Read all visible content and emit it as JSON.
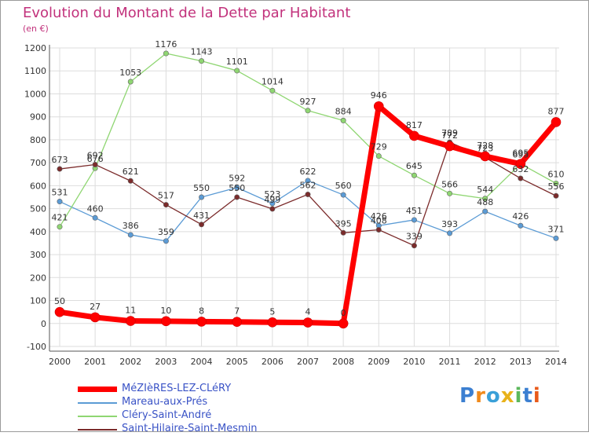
{
  "chart_data": {
    "type": "line",
    "title": "Evolution du Montant de la Dette par Habitant",
    "ylabel": "(en €)",
    "xlabel": "",
    "categories": [
      "2000",
      "2001",
      "2002",
      "2003",
      "2004",
      "2005",
      "2006",
      "2007",
      "2008",
      "2009",
      "2010",
      "2011",
      "2012",
      "2013",
      "2014"
    ],
    "ylim": [
      -100,
      1200
    ],
    "yticks": [
      -100,
      0,
      100,
      200,
      300,
      400,
      500,
      600,
      700,
      800,
      900,
      1000,
      1100,
      1200
    ],
    "grid": true,
    "legend_position": "bottom-left",
    "series": [
      {
        "name": "MéZIèRES-LEZ-CLéRY",
        "color": "#ff0000",
        "emphasis": true,
        "values": [
          50,
          27,
          11,
          10,
          8,
          7,
          5,
          4,
          0,
          946,
          817,
          772,
          728,
          695,
          877
        ]
      },
      {
        "name": "Mareau-aux-Prés",
        "color": "#5b9bd5",
        "values": [
          531,
          460,
          386,
          359,
          550,
          592,
          523,
          622,
          560,
          426,
          451,
          393,
          488,
          426,
          371
        ]
      },
      {
        "name": "Cléry-Saint-André",
        "color": "#8fd672",
        "values": [
          421,
          676,
          1053,
          1176,
          1143,
          1101,
          1014,
          927,
          884,
          729,
          645,
          566,
          544,
          695,
          610
        ]
      },
      {
        "name": "Saint-Hilaire-Saint-Mesmin",
        "color": "#7b2b2b",
        "values": [
          673,
          692,
          621,
          517,
          431,
          550,
          499,
          562,
          395,
          408,
          339,
          789,
          723,
          632,
          556
        ]
      }
    ]
  },
  "logo": {
    "text": "Proxiti",
    "letters": [
      "P",
      "r",
      "o",
      "x",
      "i",
      "t",
      "i"
    ],
    "colors": [
      "#3b7fd1",
      "#f08a1c",
      "#3aa0d8",
      "#e8b21a",
      "#5cb85c",
      "#3b7fd1",
      "#e85a1a"
    ]
  }
}
